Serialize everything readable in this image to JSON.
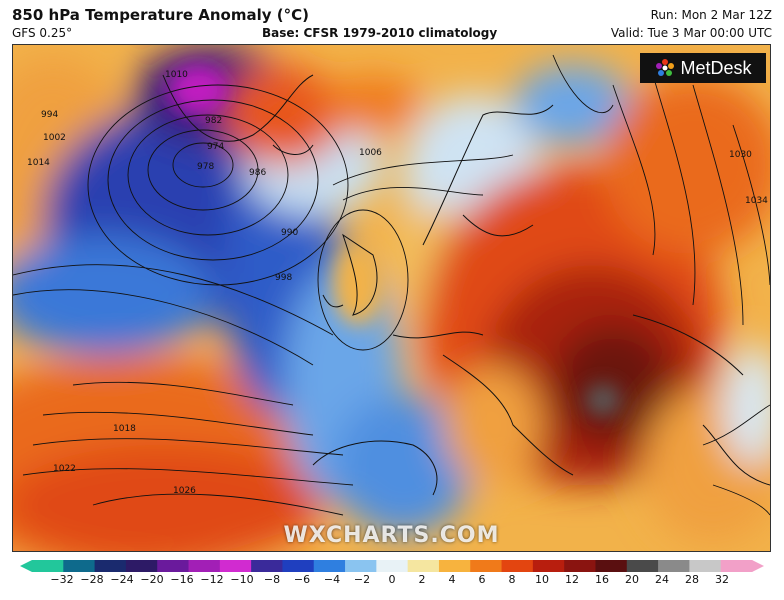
{
  "header": {
    "title": "850 hPa Temperature Anomaly (°C)",
    "model": "GFS 0.25°",
    "base": "Base: CFSR 1979-2010 climatology",
    "run": "Run: Mon 2 Mar 12Z",
    "valid": "Valid: Tue 3 Mar 00:00 UTC"
  },
  "logo": {
    "text": "MetDesk",
    "icon": "metdesk-flower-icon"
  },
  "watermark": "WXCHARTS.COM",
  "isobars": [
    {
      "label": "994"
    },
    {
      "label": "1002"
    },
    {
      "label": "1010"
    },
    {
      "label": "1014"
    },
    {
      "label": "974"
    },
    {
      "label": "978"
    },
    {
      "label": "982"
    },
    {
      "label": "986"
    },
    {
      "label": "990"
    },
    {
      "label": "998"
    },
    {
      "label": "1006"
    },
    {
      "label": "1018"
    },
    {
      "label": "1022"
    },
    {
      "label": "1026"
    },
    {
      "label": "1030"
    },
    {
      "label": "1034"
    }
  ],
  "colorbar": {
    "ticks": [
      "−32",
      "−28",
      "−24",
      "−20",
      "−16",
      "−12",
      "−10",
      "−8",
      "−6",
      "−4",
      "−2",
      "0",
      "2",
      "4",
      "6",
      "8",
      "10",
      "12",
      "16",
      "20",
      "24",
      "28",
      "32"
    ],
    "colors": [
      "#22c79b",
      "#0e6a8c",
      "#1a2a6e",
      "#2d1a66",
      "#6a1a9c",
      "#a21fb6",
      "#d12bd0",
      "#3a2a9a",
      "#1f3fbf",
      "#2f7fe0",
      "#8ac4f0",
      "#e8f2f6",
      "#f5e6a0",
      "#f7b33e",
      "#f07a1a",
      "#e34510",
      "#b81e0e",
      "#8a1410",
      "#5a0f10",
      "#4a4a4a",
      "#8a8a8a",
      "#c8c8c8",
      "#f2a0c8"
    ]
  }
}
